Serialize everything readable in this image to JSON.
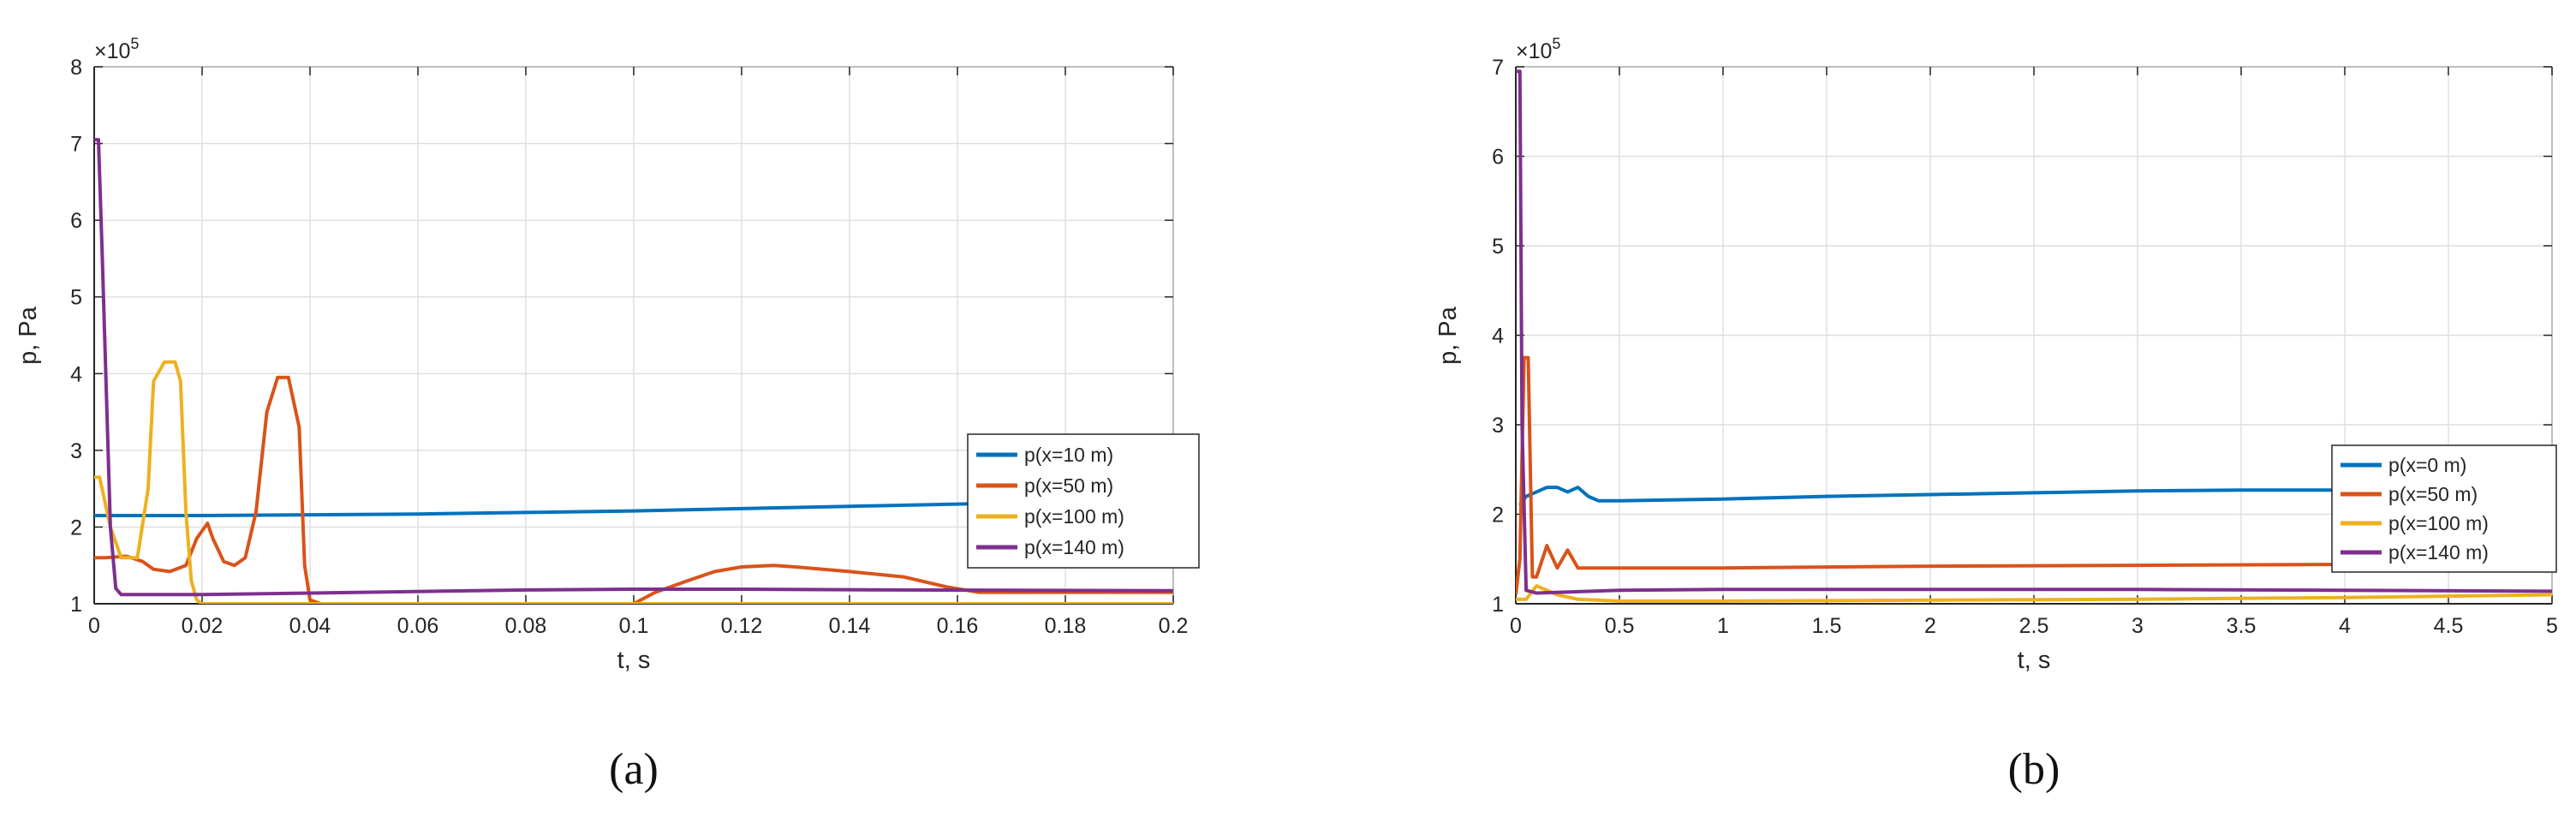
{
  "chart_data": [
    {
      "id": "a",
      "type": "line",
      "panel_label": "(a)",
      "xlabel": "t, s",
      "ylabel": "p, Pa",
      "y_multiplier": "×10^5",
      "xlim": [
        0,
        0.2
      ],
      "ylim": [
        1,
        8
      ],
      "xticks": [
        "0",
        "0.02",
        "0.04",
        "0.06",
        "0.08",
        "0.1",
        "0.12",
        "0.14",
        "0.16",
        "0.18",
        "0.2"
      ],
      "yticks": [
        "1",
        "2",
        "3",
        "4",
        "5",
        "6",
        "7",
        "8"
      ],
      "grid": true,
      "legend_position": "right",
      "series": [
        {
          "name": "p(x=10 m)",
          "color": "#0072BD",
          "x": [
            0,
            0.02,
            0.04,
            0.06,
            0.08,
            0.1,
            0.12,
            0.14,
            0.16,
            0.18,
            0.2
          ],
          "y": [
            2.15,
            2.15,
            2.16,
            2.17,
            2.19,
            2.21,
            2.24,
            2.27,
            2.3,
            2.33,
            2.36
          ]
        },
        {
          "name": "p(x=50 m)",
          "color": "#D95319",
          "x": [
            0,
            0.002,
            0.006,
            0.009,
            0.011,
            0.014,
            0.017,
            0.019,
            0.021,
            0.022,
            0.024,
            0.026,
            0.028,
            0.03,
            0.032,
            0.034,
            0.036,
            0.038,
            0.039,
            0.04,
            0.042,
            0.06,
            0.08,
            0.1,
            0.104,
            0.11,
            0.115,
            0.12,
            0.126,
            0.13,
            0.14,
            0.15,
            0.158,
            0.164,
            0.2
          ],
          "y": [
            1.6,
            1.6,
            1.62,
            1.55,
            1.45,
            1.42,
            1.5,
            1.85,
            2.05,
            1.85,
            1.55,
            1.5,
            1.6,
            2.2,
            3.5,
            3.95,
            3.95,
            3.3,
            1.5,
            1.05,
            1.0,
            1.0,
            1.0,
            1.0,
            1.15,
            1.3,
            1.42,
            1.48,
            1.5,
            1.48,
            1.42,
            1.35,
            1.22,
            1.15,
            1.15
          ]
        },
        {
          "name": "p(x=100 m)",
          "color": "#EDB120",
          "x": [
            0,
            0.001,
            0.003,
            0.005,
            0.008,
            0.01,
            0.011,
            0.013,
            0.015,
            0.016,
            0.017,
            0.018,
            0.019,
            0.02,
            0.03,
            0.05,
            0.1,
            0.15,
            0.2
          ],
          "y": [
            2.65,
            2.65,
            2.0,
            1.6,
            1.6,
            2.5,
            3.9,
            4.15,
            4.15,
            3.9,
            2.2,
            1.3,
            1.05,
            1.0,
            1.0,
            1.0,
            1.0,
            1.0,
            1.0
          ]
        },
        {
          "name": "p(x=140 m)",
          "color": "#7E2F8E",
          "x": [
            0,
            0.0008,
            0.0015,
            0.003,
            0.004,
            0.005,
            0.02,
            0.05,
            0.08,
            0.1,
            0.12,
            0.15,
            0.2
          ],
          "y": [
            7.05,
            7.05,
            5.5,
            2.0,
            1.2,
            1.12,
            1.12,
            1.15,
            1.18,
            1.19,
            1.19,
            1.18,
            1.17
          ]
        }
      ]
    },
    {
      "id": "b",
      "type": "line",
      "panel_label": "(b)",
      "xlabel": "t, s",
      "ylabel": "p, Pa",
      "y_multiplier": "×10^5",
      "xlim": [
        0,
        5
      ],
      "ylim": [
        1,
        7
      ],
      "xticks": [
        "0",
        "0.5",
        "1",
        "1.5",
        "2",
        "2.5",
        "3",
        "3.5",
        "4",
        "4.5",
        "5"
      ],
      "yticks": [
        "1",
        "2",
        "3",
        "4",
        "5",
        "6",
        "7"
      ],
      "grid": true,
      "legend_position": "right",
      "series": [
        {
          "name": "p(x=0 m)",
          "color": "#0072BD",
          "x": [
            0.02,
            0.05,
            0.1,
            0.15,
            0.2,
            0.25,
            0.3,
            0.35,
            0.4,
            0.45,
            0.5,
            1,
            1.5,
            2,
            2.5,
            3,
            3.5,
            4,
            4.5,
            5
          ],
          "y": [
            2.1,
            2.2,
            2.25,
            2.3,
            2.3,
            2.25,
            2.3,
            2.2,
            2.15,
            2.15,
            2.15,
            2.17,
            2.2,
            2.22,
            2.24,
            2.26,
            2.27,
            2.27,
            2.28,
            2.28
          ]
        },
        {
          "name": "p(x=50 m)",
          "color": "#D95319",
          "x": [
            0,
            0.02,
            0.04,
            0.06,
            0.08,
            0.1,
            0.15,
            0.2,
            0.25,
            0.3,
            0.5,
            1,
            2,
            3,
            4,
            5
          ],
          "y": [
            1.1,
            1.5,
            3.75,
            3.75,
            1.3,
            1.3,
            1.65,
            1.4,
            1.6,
            1.4,
            1.4,
            1.4,
            1.42,
            1.43,
            1.44,
            1.45
          ]
        },
        {
          "name": "p(x=100 m)",
          "color": "#EDB120",
          "x": [
            0,
            0.05,
            0.1,
            0.2,
            0.3,
            0.5,
            1,
            2,
            3,
            4,
            5
          ],
          "y": [
            1.05,
            1.05,
            1.2,
            1.1,
            1.05,
            1.03,
            1.03,
            1.04,
            1.05,
            1.07,
            1.1
          ]
        },
        {
          "name": "p(x=140 m)",
          "color": "#7E2F8E",
          "x": [
            0,
            0.02,
            0.03,
            0.05,
            0.1,
            0.5,
            1,
            2,
            3,
            4,
            5
          ],
          "y": [
            6.95,
            6.95,
            3.0,
            1.15,
            1.12,
            1.15,
            1.16,
            1.16,
            1.16,
            1.15,
            1.14
          ]
        }
      ]
    }
  ]
}
